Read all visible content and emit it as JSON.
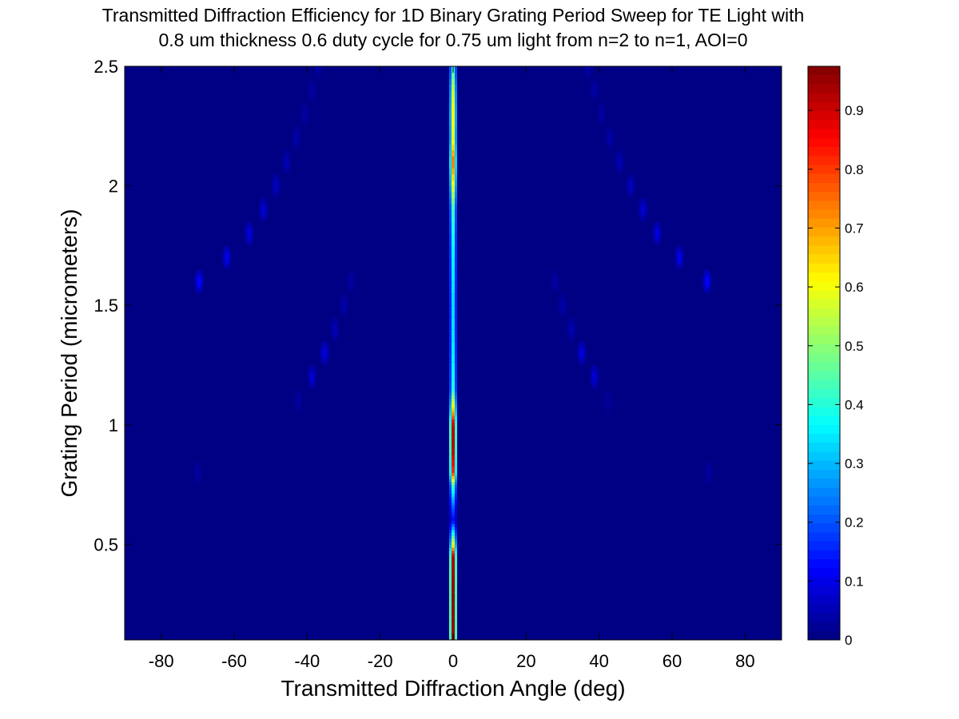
{
  "chart_data": {
    "type": "heatmap",
    "title_lines": [
      "Transmitted Diffraction Efficiency for 1D Binary Grating Period Sweep for TE Light with",
      "0.8 um thickness 0.6 duty cycle for 0.75 um light from n=2 to n=1, AOI=0"
    ],
    "xlabel": "Transmitted Diffraction Angle (deg)",
    "ylabel": "Grating Period (micrometers)",
    "xlim": [
      -90,
      90
    ],
    "ylim": [
      0.1,
      2.5
    ],
    "x_ticks": [
      -80,
      -60,
      -40,
      -20,
      0,
      20,
      40,
      60,
      80
    ],
    "x_tick_labels": [
      "-80",
      "-60",
      "-40",
      "-20",
      "0",
      "20",
      "40",
      "60",
      "80"
    ],
    "y_ticks": [
      0.5,
      1,
      1.5,
      2,
      2.5
    ],
    "y_tick_labels": [
      "0.5",
      "1",
      "1.5",
      "2",
      "2.5"
    ],
    "colormap": "jet",
    "colorbar": {
      "range": [
        0,
        0.975
      ],
      "ticks": [
        0,
        0.1,
        0.2,
        0.3,
        0.4,
        0.5,
        0.6,
        0.7,
        0.8,
        0.9
      ],
      "tick_labels": [
        "0",
        "0.1",
        "0.2",
        "0.3",
        "0.4",
        "0.5",
        "0.6",
        "0.7",
        "0.8",
        "0.9"
      ],
      "placement": "right"
    },
    "background_value": 0.005,
    "zero_order_efficiency": [
      {
        "period": 0.1,
        "efficiency": 0.95
      },
      {
        "period": 0.3,
        "efficiency": 0.96
      },
      {
        "period": 0.45,
        "efficiency": 0.93
      },
      {
        "period": 0.5,
        "efficiency": 0.6
      },
      {
        "period": 0.55,
        "efficiency": 0.38
      },
      {
        "period": 0.6,
        "efficiency": 0.12
      },
      {
        "period": 0.65,
        "efficiency": 0.2
      },
      {
        "period": 0.7,
        "efficiency": 0.32
      },
      {
        "period": 0.75,
        "efficiency": 0.45
      },
      {
        "period": 0.8,
        "efficiency": 0.8
      },
      {
        "period": 0.9,
        "efficiency": 0.93
      },
      {
        "period": 1.0,
        "efficiency": 0.92
      },
      {
        "period": 1.05,
        "efficiency": 0.7
      },
      {
        "period": 1.1,
        "efficiency": 0.55
      },
      {
        "period": 1.15,
        "efficiency": 0.4
      },
      {
        "period": 1.3,
        "efficiency": 0.35
      },
      {
        "period": 1.5,
        "efficiency": 0.33
      },
      {
        "period": 1.7,
        "efficiency": 0.36
      },
      {
        "period": 1.9,
        "efficiency": 0.42
      },
      {
        "period": 2.0,
        "efficiency": 0.58
      },
      {
        "period": 2.1,
        "efficiency": 0.75
      },
      {
        "period": 2.2,
        "efficiency": 0.58
      },
      {
        "period": 2.3,
        "efficiency": 0.62
      },
      {
        "period": 2.4,
        "efficiency": 0.55
      },
      {
        "period": 2.5,
        "efficiency": 0.4
      }
    ],
    "higher_order_spots": [
      {
        "angle": -69.6,
        "period": 1.6,
        "efficiency": 0.12
      },
      {
        "angle": -62,
        "period": 1.7,
        "efficiency": 0.1
      },
      {
        "angle": -55.9,
        "period": 1.8,
        "efficiency": 0.09
      },
      {
        "angle": -52,
        "period": 1.9,
        "efficiency": 0.08
      },
      {
        "angle": -48.6,
        "period": 2.0,
        "efficiency": 0.06
      },
      {
        "angle": -45.6,
        "period": 2.1,
        "efficiency": 0.05
      },
      {
        "angle": -42.9,
        "period": 2.2,
        "efficiency": 0.04
      },
      {
        "angle": -40.7,
        "period": 2.3,
        "efficiency": 0.035
      },
      {
        "angle": -38.7,
        "period": 2.4,
        "efficiency": 0.035
      },
      {
        "angle": -36.9,
        "period": 2.5,
        "efficiency": 0.04
      },
      {
        "angle": -38.7,
        "period": 1.2,
        "efficiency": 0.08
      },
      {
        "angle": -35.2,
        "period": 1.3,
        "efficiency": 0.09
      },
      {
        "angle": -32.4,
        "period": 1.4,
        "efficiency": 0.05
      },
      {
        "angle": -30.0,
        "period": 1.5,
        "efficiency": 0.04
      },
      {
        "angle": -27.9,
        "period": 1.6,
        "efficiency": 0.035
      },
      {
        "angle": -42.4,
        "period": 1.1,
        "efficiency": 0.03
      },
      {
        "angle": -70,
        "period": 0.8,
        "efficiency": 0.03
      },
      {
        "angle": 69.6,
        "period": 1.6,
        "efficiency": 0.12
      },
      {
        "angle": 62,
        "period": 1.7,
        "efficiency": 0.1
      },
      {
        "angle": 55.9,
        "period": 1.8,
        "efficiency": 0.09
      },
      {
        "angle": 52,
        "period": 1.9,
        "efficiency": 0.08
      },
      {
        "angle": 48.6,
        "period": 2.0,
        "efficiency": 0.06
      },
      {
        "angle": 45.6,
        "period": 2.1,
        "efficiency": 0.05
      },
      {
        "angle": 42.9,
        "period": 2.2,
        "efficiency": 0.04
      },
      {
        "angle": 40.7,
        "period": 2.3,
        "efficiency": 0.035
      },
      {
        "angle": 38.7,
        "period": 2.4,
        "efficiency": 0.035
      },
      {
        "angle": 36.9,
        "period": 2.5,
        "efficiency": 0.04
      },
      {
        "angle": 38.7,
        "period": 1.2,
        "efficiency": 0.08
      },
      {
        "angle": 35.2,
        "period": 1.3,
        "efficiency": 0.09
      },
      {
        "angle": 32.4,
        "period": 1.4,
        "efficiency": 0.05
      },
      {
        "angle": 30.0,
        "period": 1.5,
        "efficiency": 0.04
      },
      {
        "angle": 27.9,
        "period": 1.6,
        "efficiency": 0.035
      },
      {
        "angle": 42.4,
        "period": 1.1,
        "efficiency": 0.03
      },
      {
        "angle": 70,
        "period": 0.8,
        "efficiency": 0.03
      }
    ]
  }
}
